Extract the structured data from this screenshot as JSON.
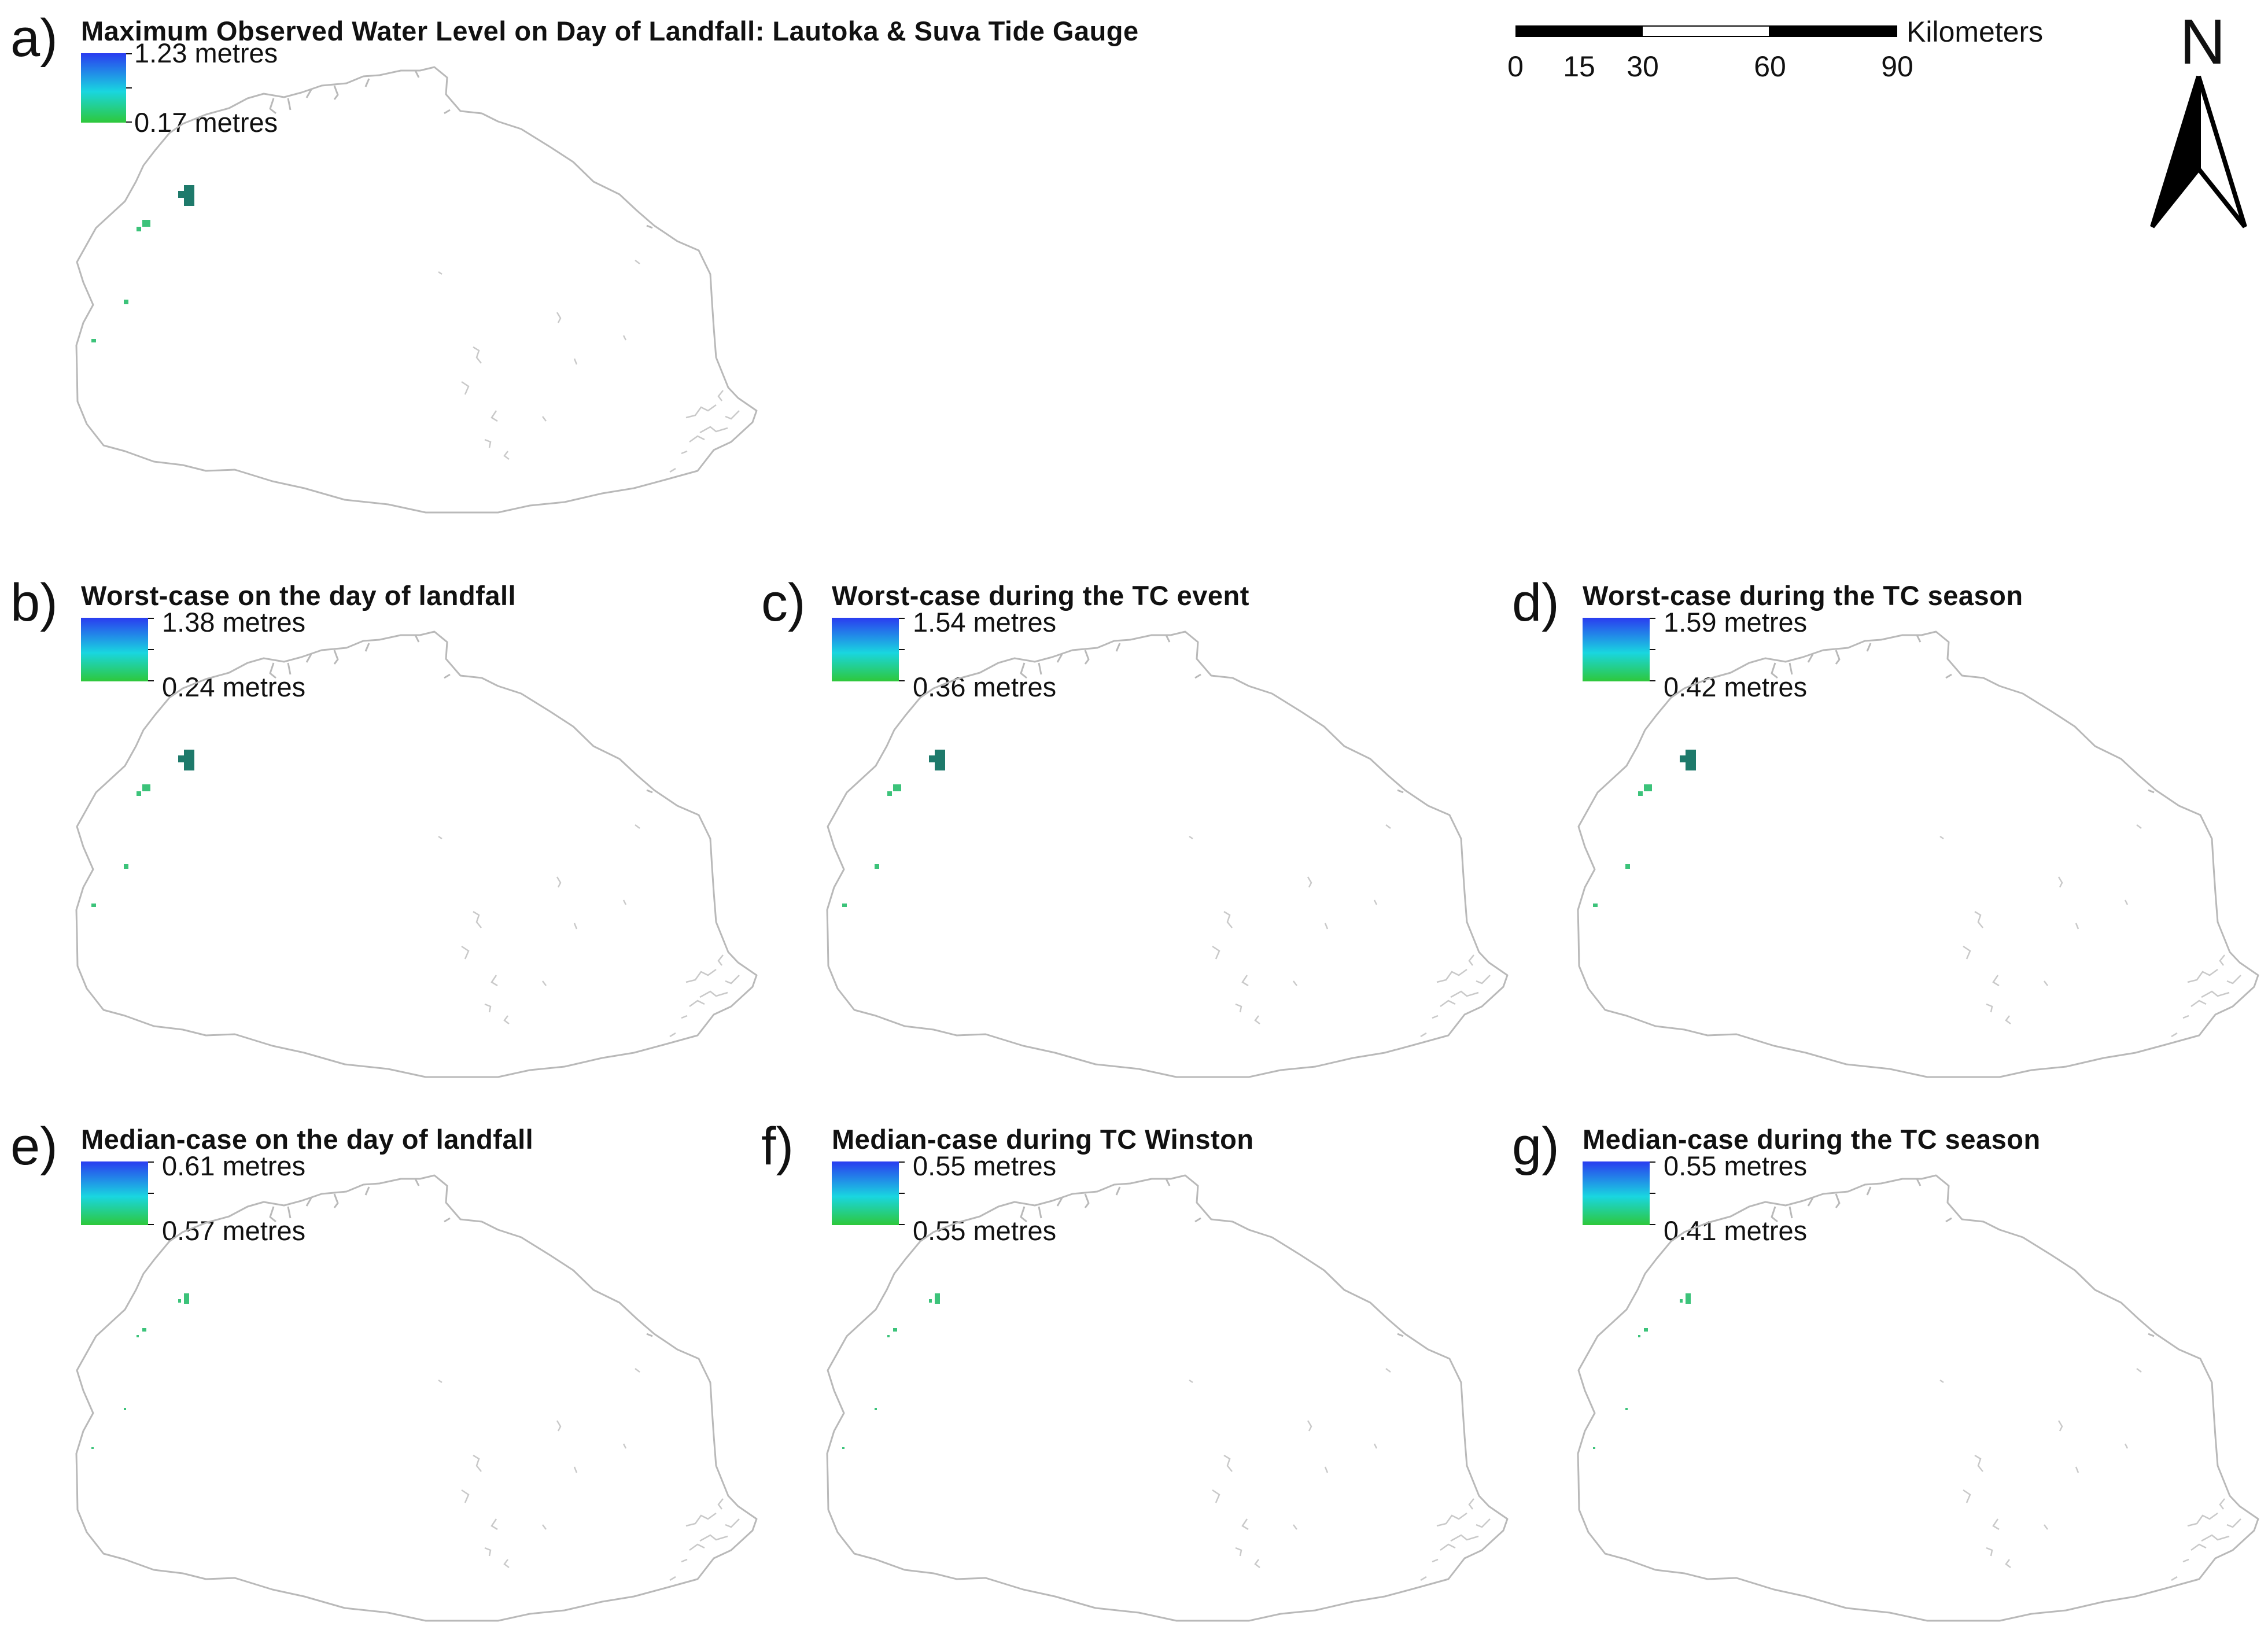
{
  "panels": [
    {
      "id": "a",
      "letter": "a)",
      "title": "Maximum Observed Water Level on Day of Landfall: Lautoka & Suva Tide Gauge",
      "legend_max": "1.23 metres",
      "legend_min": "0.17 metres"
    },
    {
      "id": "b",
      "letter": "b)",
      "title": "Worst-case on the day of landfall",
      "legend_max": "1.38 metres",
      "legend_min": "0.24 metres"
    },
    {
      "id": "c",
      "letter": "c)",
      "title": "Worst-case during the TC event",
      "legend_max": "1.54 metres",
      "legend_min": "0.36 metres"
    },
    {
      "id": "d",
      "letter": "d)",
      "title": "Worst-case during the TC season",
      "legend_max": "1.59 metres",
      "legend_min": "0.42 metres"
    },
    {
      "id": "e",
      "letter": "e)",
      "title": "Median-case on the day of landfall",
      "legend_max": "0.61 metres",
      "legend_min": "0.57 metres"
    },
    {
      "id": "f",
      "letter": "f)",
      "title": "Median-case during TC Winston",
      "legend_max": "0.55 metres",
      "legend_min": "0.55 metres"
    },
    {
      "id": "g",
      "letter": "g)",
      "title": "Median-case during the TC season",
      "legend_max": "0.55 metres",
      "legend_min": "0.41 metres"
    }
  ],
  "scalebar": {
    "units": "Kilometers",
    "labels": [
      "0",
      "15",
      "30",
      "60",
      "90"
    ]
  },
  "north_arrow": {
    "letter": "N"
  },
  "colors": {
    "legend_top": "#2a3cf0",
    "legend_mid": "#19d6e0",
    "legend_bottom": "#2ec83a",
    "coastline": "#b9b9b9",
    "flood_dark": "#1e7a6b",
    "flood_light": "#3cc37a"
  }
}
